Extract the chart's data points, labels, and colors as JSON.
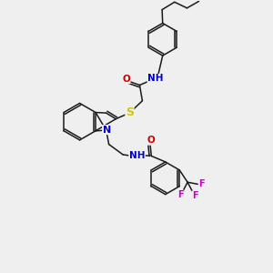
{
  "background_color": "#efefef",
  "bond_color": "#1a1a1a",
  "figsize": [
    3.0,
    3.0
  ],
  "dpi": 100,
  "atoms": {
    "S": {
      "color": "#cccc00",
      "fontsize": 7.5
    },
    "N": {
      "color": "#0000cc",
      "fontsize": 7.5
    },
    "O": {
      "color": "#cc0000",
      "fontsize": 7.5
    },
    "F": {
      "color": "#cc00cc",
      "fontsize": 7.0
    },
    "H": {
      "color": "#008888",
      "fontsize": 6.5
    }
  },
  "lw": 1.1,
  "scale": 10.0
}
